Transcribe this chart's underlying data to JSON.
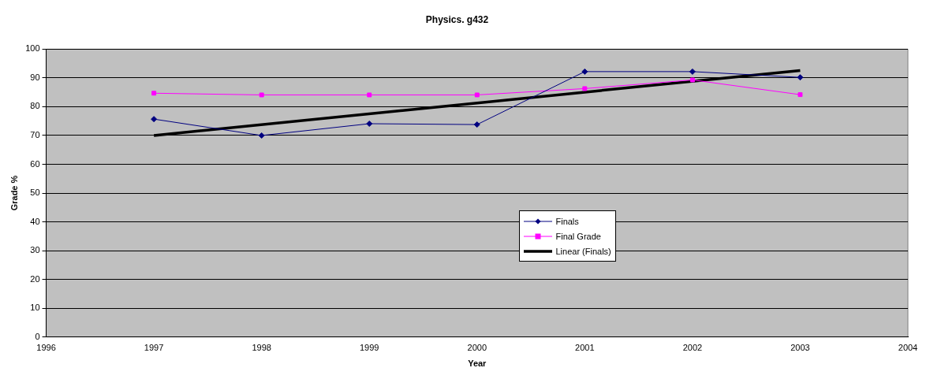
{
  "chart_data": {
    "type": "line",
    "title": "Physics. g432",
    "xlabel": "Year",
    "ylabel": "Grade %",
    "x": [
      1997,
      1998,
      1999,
      2000,
      2001,
      2002,
      2003
    ],
    "series": [
      {
        "name": "Finals",
        "color": "#000080",
        "values": [
          75.7,
          70,
          74.1,
          73.8,
          92.2,
          92.2,
          90.2
        ],
        "marker": "diamond"
      },
      {
        "name": "Final Grade",
        "color": "#ff00ff",
        "values": [
          84.7,
          84.1,
          84.1,
          84.1,
          86.3,
          89.3,
          84.2
        ],
        "marker": "square"
      },
      {
        "name": "Linear (Finals)",
        "color": "#000000",
        "x": [
          1997,
          2003
        ],
        "values": [
          70.0,
          92.6
        ],
        "marker": "none"
      }
    ],
    "xlim": [
      1996,
      2004
    ],
    "xticks": [
      1996,
      1997,
      1998,
      1999,
      2000,
      2001,
      2002,
      2003,
      2004
    ],
    "ylim": [
      0,
      100
    ],
    "yticks": [
      0,
      10,
      20,
      30,
      40,
      50,
      60,
      70,
      80,
      90,
      100
    ],
    "grid": "y",
    "legend": "center",
    "line_style": "solid"
  }
}
